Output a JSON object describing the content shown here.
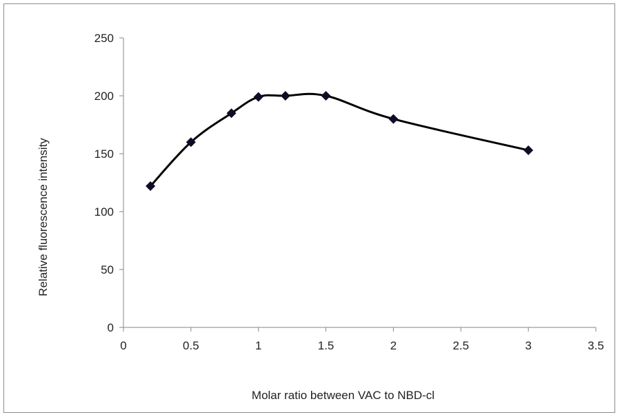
{
  "chart_data": {
    "type": "line",
    "title": "",
    "xlabel": "Molar ratio between VAC to NBD-cl",
    "ylabel": "Relative fluorescence intensity",
    "xlim": [
      0,
      3.5
    ],
    "ylim": [
      0,
      250
    ],
    "x_ticks": [
      "0",
      "0.5",
      "1",
      "1.5",
      "2",
      "2.5",
      "3",
      "3.5"
    ],
    "y_ticks": [
      "0",
      "50",
      "100",
      "150",
      "200",
      "250"
    ],
    "x": [
      0.2,
      0.5,
      0.8,
      1.0,
      1.2,
      1.5,
      2.0,
      3.0
    ],
    "y": [
      122,
      160,
      185,
      199,
      200,
      200,
      180,
      153
    ],
    "marker": "diamond",
    "smoothed": true,
    "grid": false,
    "legend": false,
    "colors": {
      "line": "#000000",
      "marker": "#0d0d26",
      "axis": "#868686"
    }
  }
}
